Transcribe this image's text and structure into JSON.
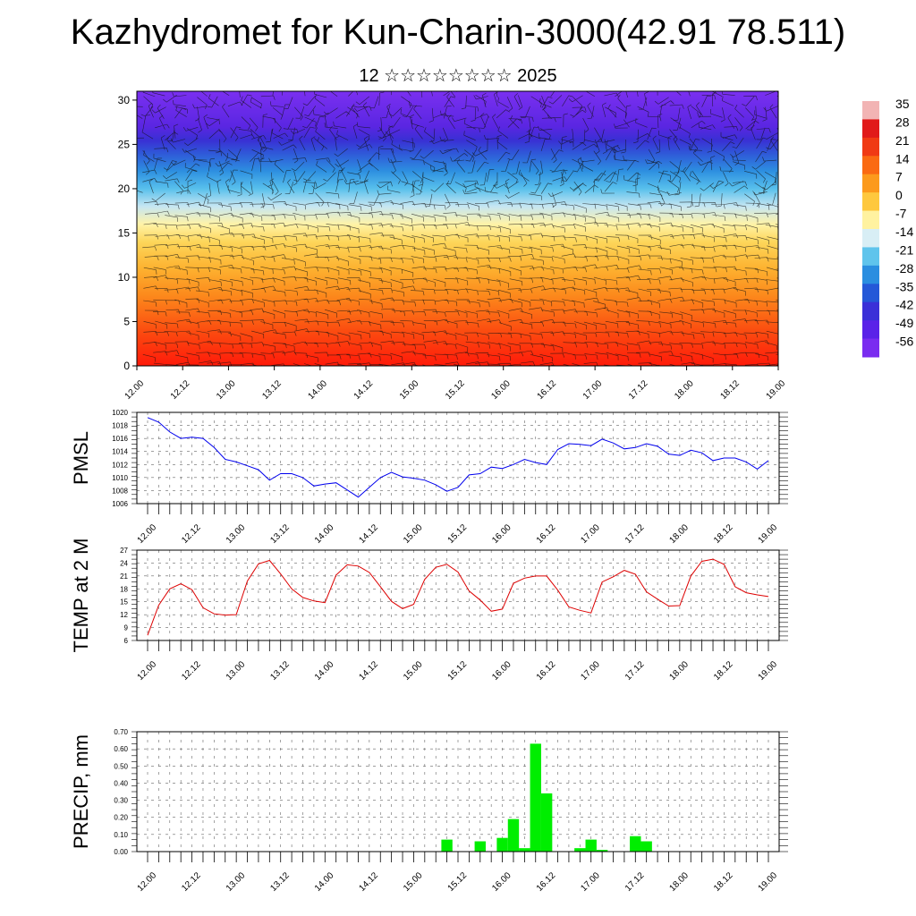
{
  "title": "Kazhydromet for Kun-Charin-3000(42.91 78.511)",
  "subtitle": "12 ☆☆☆☆☆☆☆☆ 2025",
  "colorbar": {
    "labels": [
      "35",
      "28",
      "21",
      "14",
      "7",
      "0",
      "-7",
      "-14",
      "-21",
      "-28",
      "-35",
      "-42",
      "-49",
      "-56"
    ],
    "colors": [
      "#f2b4b4",
      "#e11a1a",
      "#f03a14",
      "#fa6a12",
      "#fc9a1c",
      "#fec83e",
      "#fff2a0",
      "#d8eef5",
      "#5fc4ec",
      "#2a8ee0",
      "#2458d8",
      "#3a30d8",
      "#5a22e8",
      "#7a2cf0"
    ]
  },
  "chart_data": [
    {
      "type": "heatmap",
      "name": "temperature-wind-profile",
      "x_ticks": [
        "12.00",
        "12.12",
        "13.00",
        "13.12",
        "14.00",
        "14.12",
        "15.00",
        "15.12",
        "16.00",
        "16.12",
        "17.00",
        "17.12",
        "18.00",
        "18.12",
        "19.00"
      ],
      "ylim": [
        0,
        31
      ],
      "y_ticks": [
        "0",
        "5",
        "10",
        "15",
        "20",
        "25",
        "30"
      ],
      "levels": [
        {
          "y": 0,
          "color": "#ff1a0a"
        },
        {
          "y": 4,
          "color": "#fb4d10"
        },
        {
          "y": 8,
          "color": "#fc8a1c"
        },
        {
          "y": 11,
          "color": "#fdb230"
        },
        {
          "y": 14,
          "color": "#fdd65a"
        },
        {
          "y": 16,
          "color": "#fff3a8"
        },
        {
          "y": 18,
          "color": "#c6e6f2"
        },
        {
          "y": 20,
          "color": "#58c0ec"
        },
        {
          "y": 22,
          "color": "#2d8fe0"
        },
        {
          "y": 24,
          "color": "#2f58d8"
        },
        {
          "y": 25.5,
          "color": "#3a2fd4"
        },
        {
          "y": 27,
          "color": "#5a26e2"
        },
        {
          "y": 31,
          "color": "#7a30f0"
        }
      ]
    },
    {
      "type": "line",
      "name": "pmsl",
      "ylabel": "PMSL",
      "ylim": [
        1006,
        1020
      ],
      "y_ticks": [
        "1006",
        "1008",
        "1010",
        "1012",
        "1014",
        "1016",
        "1018",
        "1020"
      ],
      "x_ticks": [
        "12.00",
        "12.12",
        "13.00",
        "13.12",
        "14.00",
        "14.12",
        "15.00",
        "15.12",
        "16.00",
        "16.12",
        "17.00",
        "17.12",
        "18.00",
        "18.12",
        "19.00"
      ],
      "color": "#0000ee",
      "values": [
        1019.2,
        1018.5,
        1017,
        1016,
        1016.2,
        1016,
        1014.6,
        1012.8,
        1012.4,
        1011.8,
        1011.2,
        1009.6,
        1010.6,
        1010.6,
        1010,
        1008.7,
        1009,
        1009.2,
        1008.1,
        1007,
        1008.5,
        1010,
        1010.8,
        1010.1,
        1009.9,
        1009.6,
        1008.9,
        1007.9,
        1008.5,
        1010.4,
        1010.6,
        1011.6,
        1011.4,
        1012,
        1012.8,
        1012.3,
        1012,
        1014.3,
        1015.2,
        1015.1,
        1014.9,
        1015.9,
        1015.3,
        1014.4,
        1014.6,
        1015.2,
        1014.8,
        1013.6,
        1013.4,
        1014.2,
        1013.8,
        1012.6,
        1013,
        1013,
        1012.4,
        1011.3,
        1012.6
      ]
    },
    {
      "type": "line",
      "name": "temp-2m",
      "ylabel": "TEMP at 2 M",
      "ylim": [
        6,
        27
      ],
      "y_ticks": [
        "6",
        "9",
        "12",
        "15",
        "18",
        "21",
        "24",
        "27"
      ],
      "x_ticks": [
        "12.00",
        "12.12",
        "13.00",
        "13.12",
        "14.00",
        "14.12",
        "15.00",
        "15.12",
        "16.00",
        "16.12",
        "17.00",
        "17.12",
        "18.00",
        "18.12",
        "19.00"
      ],
      "color": "#dd0000",
      "values": [
        7.2,
        14.2,
        18,
        19.2,
        17.8,
        13.6,
        12.2,
        11.9,
        12,
        19.8,
        23.8,
        24.6,
        21.5,
        18,
        16,
        15.2,
        14.8,
        21.2,
        23.6,
        23.3,
        21.8,
        18.5,
        15.1,
        13.4,
        14.4,
        20.2,
        23,
        23.7,
        21.9,
        17.5,
        15.4,
        12.8,
        13.3,
        19.3,
        20.5,
        21,
        21,
        17.7,
        13.8,
        13,
        12.4,
        19.6,
        20.8,
        22.3,
        21.4,
        17.3,
        15.6,
        14,
        14.1,
        21,
        24.4,
        24.9,
        23.7,
        18.5,
        17.1,
        16.6,
        16.2
      ]
    },
    {
      "type": "bar",
      "name": "precip",
      "ylabel": "PRECIP, mm",
      "ylim": [
        0,
        0.7
      ],
      "y_ticks": [
        "0.00",
        "0.10",
        "0.20",
        "0.30",
        "0.40",
        "0.50",
        "0.60",
        "0.70"
      ],
      "x_ticks": [
        "12.00",
        "12.12",
        "13.00",
        "13.12",
        "14.00",
        "14.12",
        "15.00",
        "15.12",
        "16.00",
        "16.12",
        "17.00",
        "17.12",
        "18.00",
        "18.12",
        "19.00"
      ],
      "color": "#00ee00",
      "values": [
        0,
        0,
        0,
        0,
        0,
        0,
        0,
        0,
        0,
        0,
        0,
        0,
        0,
        0,
        0,
        0,
        0,
        0,
        0,
        0,
        0,
        0,
        0,
        0,
        0,
        0,
        0,
        0.07,
        0,
        0,
        0.06,
        0,
        0.08,
        0.19,
        0.02,
        0.63,
        0.34,
        0,
        0,
        0.02,
        0.07,
        0.01,
        0,
        0,
        0.09,
        0.06,
        0,
        0,
        0,
        0,
        0,
        0,
        0,
        0,
        0,
        0,
        0
      ]
    }
  ]
}
